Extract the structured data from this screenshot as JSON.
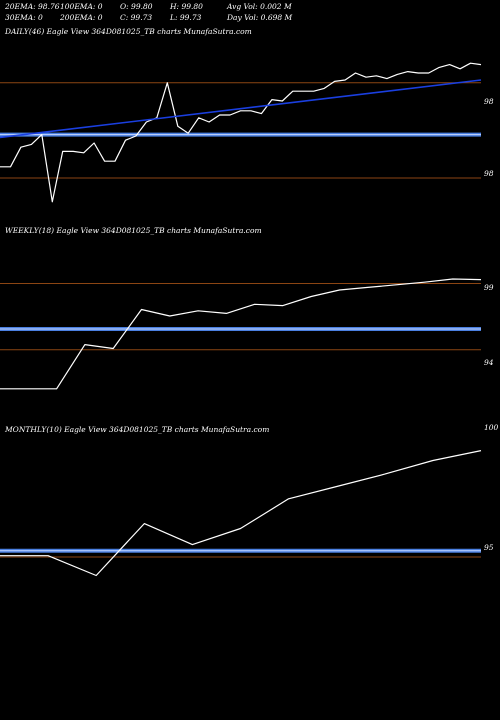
{
  "header": {
    "row1": [
      {
        "label": "20EMA: 98.76"
      },
      {
        "label": "100EMA: 0"
      },
      {
        "label": "O: 99.80"
      },
      {
        "label": "H: 99.80"
      },
      {
        "label": "Avg Vol: 0.002  M"
      }
    ],
    "row2": [
      {
        "label": "30EMA: 0"
      },
      {
        "label": "200EMA: 0"
      },
      {
        "label": "C: 99.73"
      },
      {
        "label": "L: 99.73"
      },
      {
        "label": "Day Vol: 0.698  M"
      }
    ]
  },
  "colors": {
    "background": "#000000",
    "price_line": "#ffffff",
    "ema_line": "#1a3fe0",
    "level_line": "#8b4513",
    "support_line": "#4a7fe0",
    "support_core": "#c8d8ff"
  },
  "chart_data": [
    {
      "type": "line",
      "title": "DAILY(46) Eagle  View  364D081025_TB charts MunafaSutra.com",
      "tick_labels": [
        "98",
        "98"
      ],
      "series": [
        {
          "values": [
            98.48,
            98.48,
            98.62,
            98.64,
            98.71,
            98.23,
            98.59,
            98.59,
            98.58,
            98.65,
            98.52,
            98.52,
            98.67,
            98.7,
            98.8,
            98.83,
            99.08,
            98.77,
            98.72,
            98.83,
            98.8,
            98.85,
            98.85,
            98.88,
            98.88,
            98.86,
            98.96,
            98.95,
            99.02,
            99.02,
            99.02,
            99.04,
            99.09,
            99.1,
            99.15,
            99.12,
            99.13,
            99.11,
            99.14,
            99.16,
            99.15,
            99.15,
            99.19,
            99.21,
            99.18,
            99.22,
            99.21
          ]
        },
        {
          "values": [
            98.69,
            99.1
          ]
        }
      ],
      "levels": [
        {
          "kind": "level",
          "value": 99.08
        },
        {
          "kind": "support",
          "value": 98.71
        },
        {
          "kind": "level",
          "value": 98.4
        }
      ],
      "ylim": [
        98.1,
        99.4
      ]
    },
    {
      "type": "line",
      "title": "WEEKLY(18) Eagle  View  364D081025_TB charts MunafaSutra.com",
      "tick_labels": [
        "99",
        "94"
      ],
      "series": [
        {
          "values": [
            91.4,
            91.4,
            91.4,
            94.8,
            94.5,
            97.5,
            97.0,
            97.4,
            97.2,
            97.9,
            97.8,
            98.5,
            99.0,
            99.2,
            99.4,
            99.6,
            99.85,
            99.8
          ]
        }
      ],
      "levels": [
        {
          "kind": "level",
          "value": 99.5
        },
        {
          "kind": "support",
          "value": 96.0
        },
        {
          "kind": "level",
          "value": 94.4
        }
      ],
      "ylim": [
        89.0,
        103.0
      ]
    },
    {
      "type": "line",
      "title": "MONTHLY(10) Eagle  View  364D081025_TB charts MunafaSutra.com",
      "tick_labels": [
        "100",
        "95"
      ],
      "series": [
        {
          "values": [
            94.8,
            94.8,
            94.0,
            96.1,
            95.25,
            95.9,
            97.1,
            97.6,
            98.1,
            98.65,
            99.05
          ]
        }
      ],
      "levels": [
        {
          "kind": "support",
          "value": 95.0
        },
        {
          "kind": "level",
          "value": 94.75
        }
      ],
      "ylim": [
        92.2,
        99.6
      ]
    }
  ]
}
